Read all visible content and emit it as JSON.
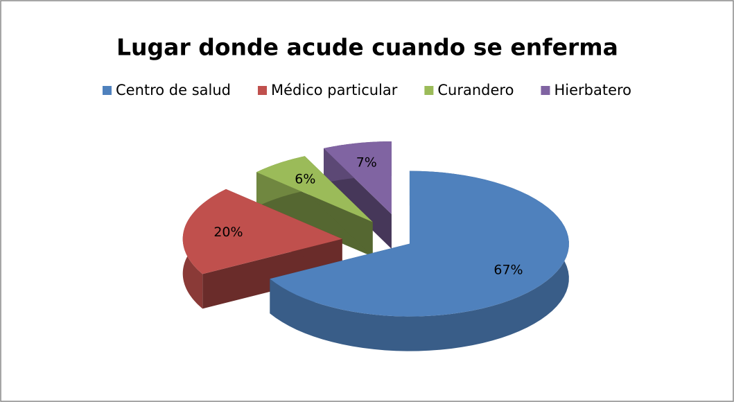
{
  "chart_data": {
    "type": "pie",
    "title": "Lugar donde acude cuando se enferma",
    "categories": [
      "Centro de salud",
      "Médico particular",
      "Curandero",
      "Hierbatero"
    ],
    "values": [
      67,
      20,
      6,
      7
    ],
    "value_labels": [
      "67%",
      "20%",
      "6%",
      "7%"
    ],
    "colors": [
      "#4f81bd",
      "#c0504d",
      "#9bbb59",
      "#8064a2"
    ],
    "legend": "top"
  }
}
